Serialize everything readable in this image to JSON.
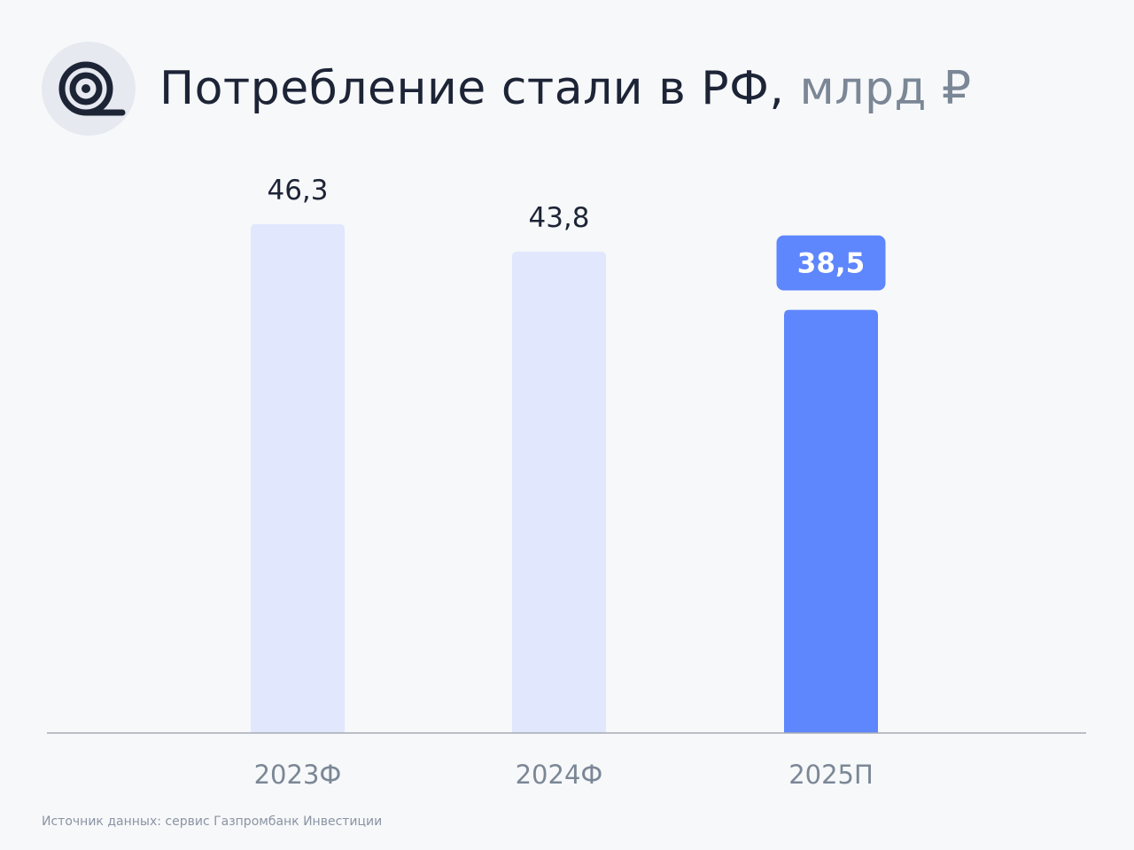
{
  "title": {
    "main": "Потребление стали в РФ,",
    "unit": "млрд ₽"
  },
  "logo": {
    "icon": "steel-coil-icon"
  },
  "source": "Источник данных: сервис Газпромбанк Инвестиции",
  "colors": {
    "bar_default": "#e1e7fc",
    "bar_highlight": "#5e86fd",
    "axis": "#a5abb5",
    "text_dark": "#1d2436",
    "text_muted": "#7b8796"
  },
  "chart_data": {
    "type": "bar",
    "categories": [
      "2023Ф",
      "2024Ф",
      "2025П"
    ],
    "values": [
      46.3,
      43.8,
      38.5
    ],
    "value_labels": [
      "46,3",
      "43,8",
      "38,5"
    ],
    "highlight_index": 2,
    "title": "Потребление стали в РФ, млрд ₽",
    "xlabel": "",
    "ylabel": "",
    "grid": false,
    "legend": "none"
  }
}
